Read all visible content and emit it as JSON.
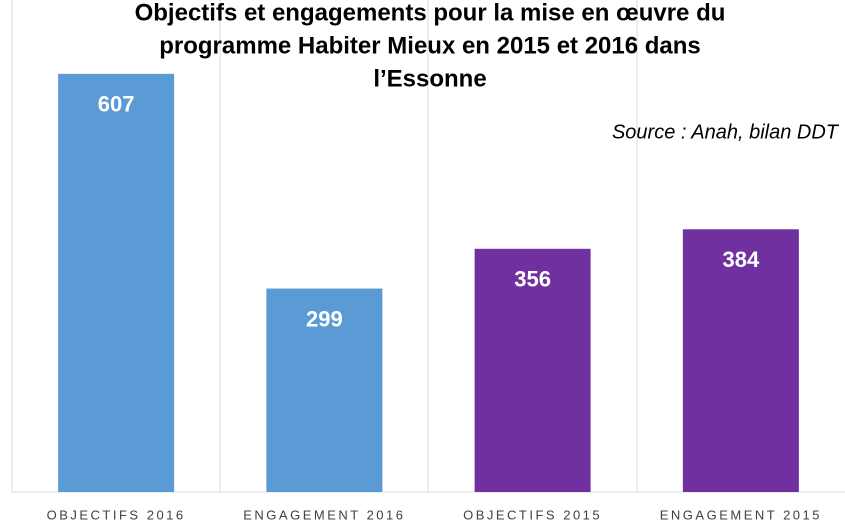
{
  "chart_data": {
    "type": "bar",
    "title": [
      "Objectifs et engagements pour la mise en œuvre du",
      "programme Habiter Mieux en 2015 et 2016 dans",
      "l’Essonne"
    ],
    "annotation": "Source : Anah, bilan DDT",
    "categories": [
      "OBJECTIFS 2016",
      "ENGAGEMENT 2016",
      "OBJECTIFS 2015",
      "ENGAGEMENT 2015"
    ],
    "values": [
      607,
      299,
      356,
      384
    ],
    "colors": [
      "#5b9bd5",
      "#5b9bd5",
      "#7030a0",
      "#7030a0"
    ],
    "ylim": [
      0,
      700
    ]
  }
}
